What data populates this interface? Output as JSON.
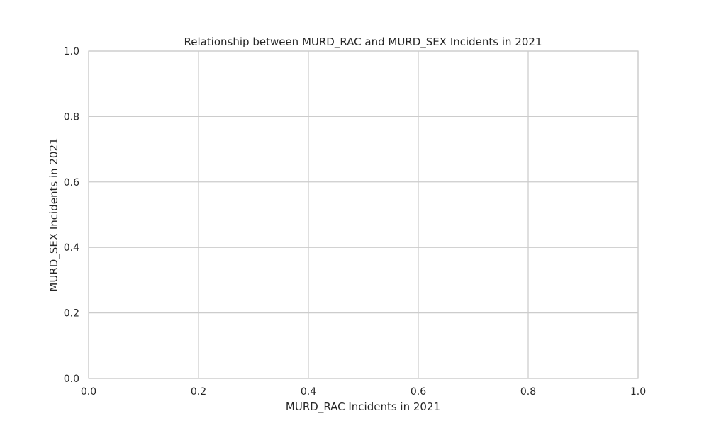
{
  "chart_data": {
    "type": "scatter",
    "title": "Relationship between MURD_RAC and MURD_SEX Incidents in 2021",
    "xlabel": "MURD_RAC Incidents in 2021",
    "ylabel": "MURD_SEX Incidents in 2021",
    "xlim": [
      0,
      1
    ],
    "ylim": [
      0,
      1
    ],
    "x_ticks": [
      "0.0",
      "0.2",
      "0.4",
      "0.6",
      "0.8",
      "1.0"
    ],
    "y_ticks": [
      "0.0",
      "0.2",
      "0.4",
      "0.6",
      "0.8",
      "1.0"
    ],
    "x": [],
    "y": [],
    "grid": true,
    "colors": {
      "grid": "#cccccc",
      "spine": "#cccccc",
      "text": "#262626",
      "background": "#ffffff"
    }
  }
}
